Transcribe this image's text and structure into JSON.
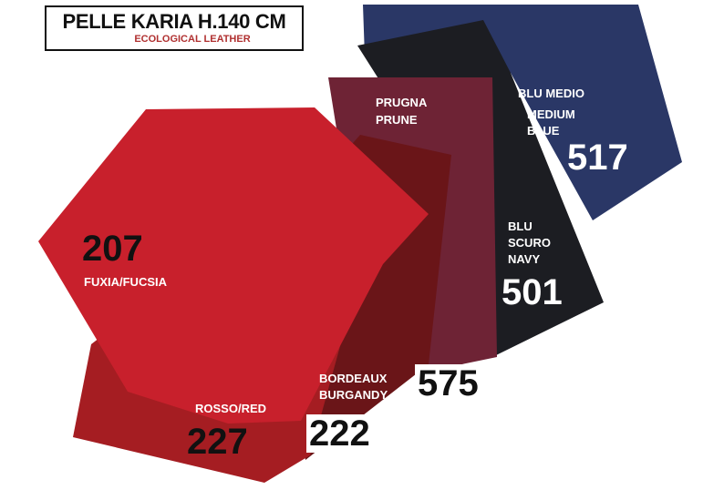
{
  "header": {
    "title": "PELLE KARIA H.140 CM",
    "subtitle": "ECOLOGICAL LEATHER"
  },
  "swatches": [
    {
      "code": "517",
      "name_it": "BLU MEDIO",
      "name_en_1": "MEDIUM",
      "name_en_2": "BLUE",
      "color": "#2a3766"
    },
    {
      "code": "501",
      "name_it": "BLU",
      "name_it_2": "SCURO",
      "name_en": "NAVY",
      "color": "#1c1d22"
    },
    {
      "code": "575",
      "name_it": "PRUGNA",
      "name_en": "PRUNE",
      "color": "#6e2335"
    },
    {
      "code": "222",
      "name_it": "BORDEAUX",
      "name_en": "BURGANDY",
      "color": "#6a1518"
    },
    {
      "code": "227",
      "name": "ROSSO/RED",
      "color": "#a51d22"
    },
    {
      "code": "207",
      "name": "FUXIA/FUCSIA",
      "color": "#c8202c"
    }
  ]
}
